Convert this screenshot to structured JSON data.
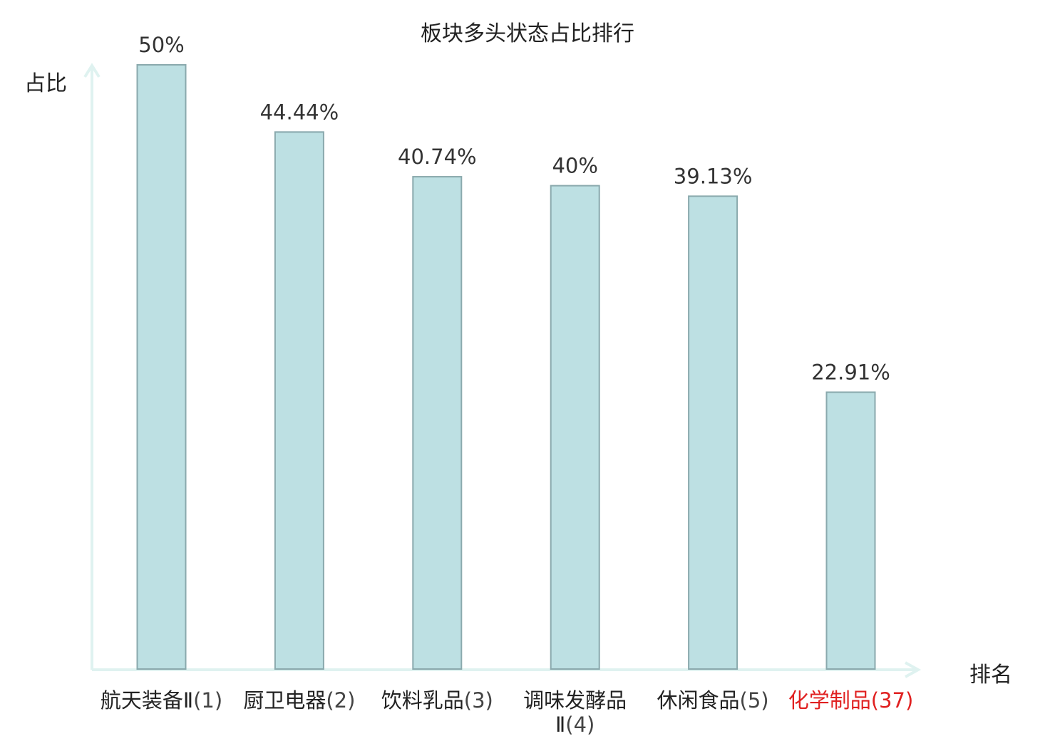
{
  "chart_data": {
    "type": "bar",
    "title": "板块多头状态占比排行",
    "ylabel": "占比",
    "xlabel": "排名",
    "categories": [
      {
        "name": "航天装备Ⅱ",
        "rank": "(1)",
        "highlight": false
      },
      {
        "name": "厨卫电器",
        "rank": "(2)",
        "highlight": false
      },
      {
        "name": "饮料乳品",
        "rank": "(3)",
        "highlight": false
      },
      {
        "name": "调味发酵品Ⅱ",
        "rank": "(4)",
        "highlight": false
      },
      {
        "name": "休闲食品",
        "rank": "(5)",
        "highlight": false
      },
      {
        "name": "化学制品",
        "rank": "(37)",
        "highlight": true
      }
    ],
    "values": [
      50,
      44.44,
      40.74,
      40,
      39.13,
      22.91
    ],
    "value_labels": [
      "50%",
      "44.44%",
      "40.74%",
      "40%",
      "39.13%",
      "22.91%"
    ],
    "ylim": [
      0,
      50
    ],
    "grid": false,
    "colors": {
      "bar_fill": "#bde0e3",
      "bar_stroke": "#8aa9ad",
      "axis": "#dff2f0",
      "highlight": "#e02020"
    }
  }
}
